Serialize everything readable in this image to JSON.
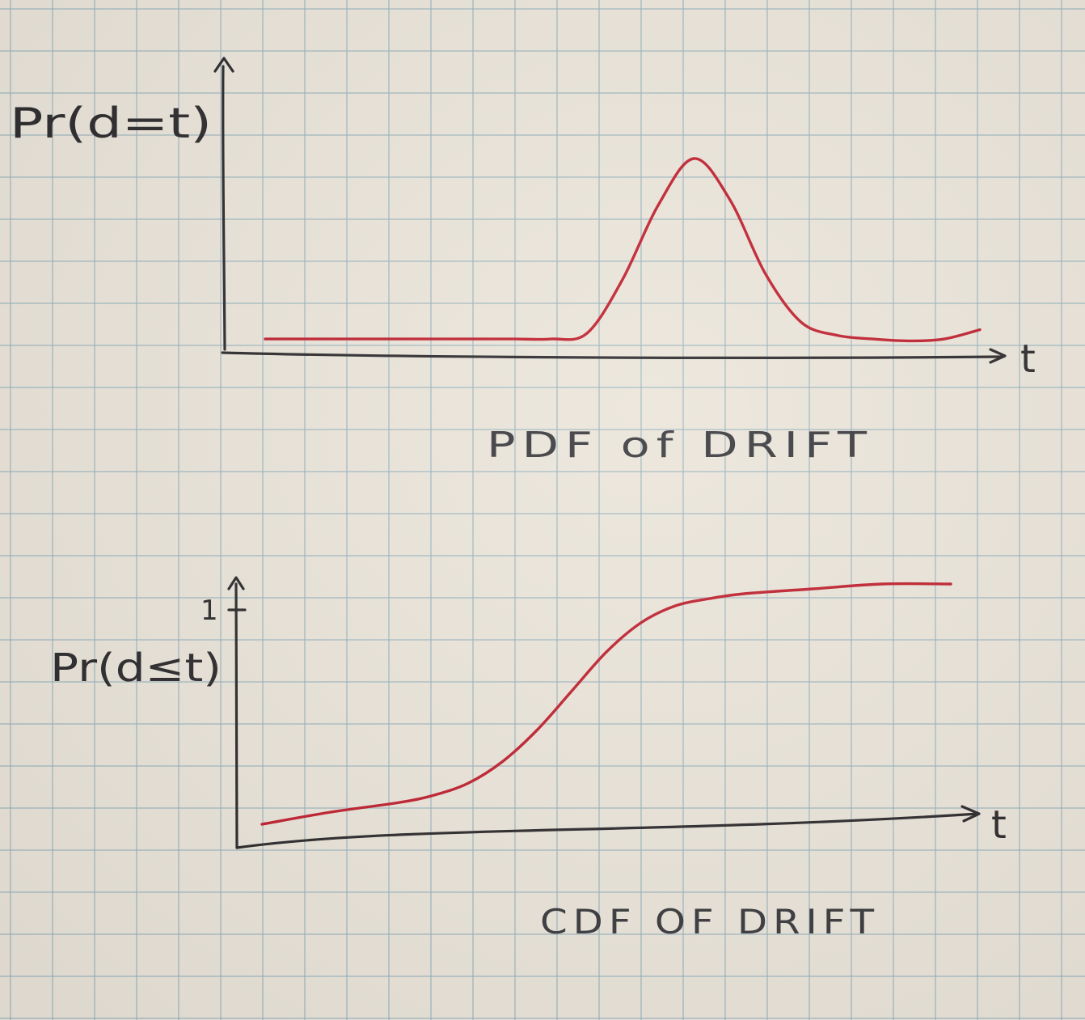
{
  "chart_data": [
    {
      "type": "line",
      "title": "PDF of DRIFT",
      "ylabel": "Pr(d=t)",
      "xlabel": "t",
      "grid": false,
      "series": [
        {
          "x": [
            0.0,
            0.1,
            0.2,
            0.3,
            0.35,
            0.4,
            0.45,
            0.5,
            0.55,
            0.6,
            0.65,
            0.7,
            0.75,
            0.8,
            0.85,
            0.9,
            0.95,
            1.0
          ],
          "values": [
            0.03,
            0.03,
            0.03,
            0.03,
            0.03,
            0.03,
            0.06,
            0.35,
            0.75,
            1.0,
            0.78,
            0.38,
            0.12,
            0.05,
            0.03,
            0.02,
            0.03,
            0.08
          ]
        }
      ]
    },
    {
      "type": "line",
      "title": "CDF OF DRIFT",
      "ylabel": "Pr(d≤t)",
      "xlabel": "t",
      "yticks": [
        "1"
      ],
      "ylim": [
        0,
        1
      ],
      "grid": false,
      "series": [
        {
          "x": [
            0.0,
            0.1,
            0.2,
            0.25,
            0.3,
            0.35,
            0.4,
            0.45,
            0.5,
            0.55,
            0.6,
            0.65,
            0.7,
            0.8,
            0.9,
            1.0
          ],
          "values": [
            0.01,
            0.06,
            0.1,
            0.13,
            0.18,
            0.27,
            0.4,
            0.56,
            0.72,
            0.84,
            0.91,
            0.94,
            0.96,
            0.98,
            1.0,
            1.0
          ]
        }
      ]
    }
  ],
  "colors": {
    "curve": "#c0202e",
    "ink": "#2c2a2c",
    "grid": "#96b2be",
    "paper": "#ebe5da"
  }
}
